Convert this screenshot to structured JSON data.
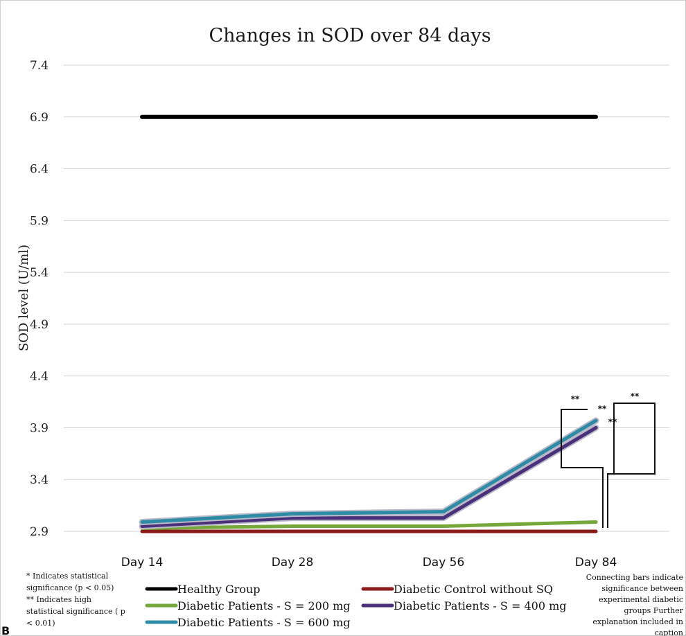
{
  "chart_data": {
    "type": "line",
    "title": "Changes in SOD over 84 days",
    "xlabel": "",
    "ylabel": "SOD level (U/ml)",
    "categories": [
      "Day 14",
      "Day 28",
      "Day 56",
      "Day 84"
    ],
    "yticks": [
      "7.4",
      "6.9",
      "6.4",
      "5.9",
      "5.4",
      "4.9",
      "4.4",
      "3.9",
      "3.4",
      "2.9"
    ],
    "ylim": [
      2.9,
      7.4
    ],
    "grid": true,
    "series": [
      {
        "name": "Healthy Group",
        "values": [
          6.9,
          6.9,
          6.9,
          6.9
        ],
        "color": "#000000"
      },
      {
        "name": "Diabetic Control without SQ",
        "values": [
          2.9,
          2.9,
          2.9,
          2.9
        ],
        "color": "#8b1a1a"
      },
      {
        "name": "Diabetic Patients - S = 200 mg",
        "values": [
          2.93,
          2.95,
          2.95,
          2.99
        ],
        "color": "#76a73a"
      },
      {
        "name": "Diabetic Patients - S = 400 mg",
        "values": [
          2.95,
          3.03,
          3.03,
          3.9
        ],
        "color": "#4a2f7a"
      },
      {
        "name": "Diabetic Patients - S = 600 mg",
        "values": [
          2.99,
          3.07,
          3.09,
          3.97
        ],
        "color": "#2e8ba6"
      }
    ],
    "significance_marks": [
      "**",
      "**",
      "**",
      "**"
    ],
    "notes": {
      "left": [
        "* Indicates statistical",
        "significance (p < 0.05)",
        "** Indicates high",
        "statistical significance ( p",
        "< 0.01)"
      ],
      "right": [
        "Connecting bars indicate",
        "significance between",
        "experimental diabetic",
        "groups  Further",
        "explanation included in",
        "caption"
      ]
    },
    "corner_label": "B"
  }
}
